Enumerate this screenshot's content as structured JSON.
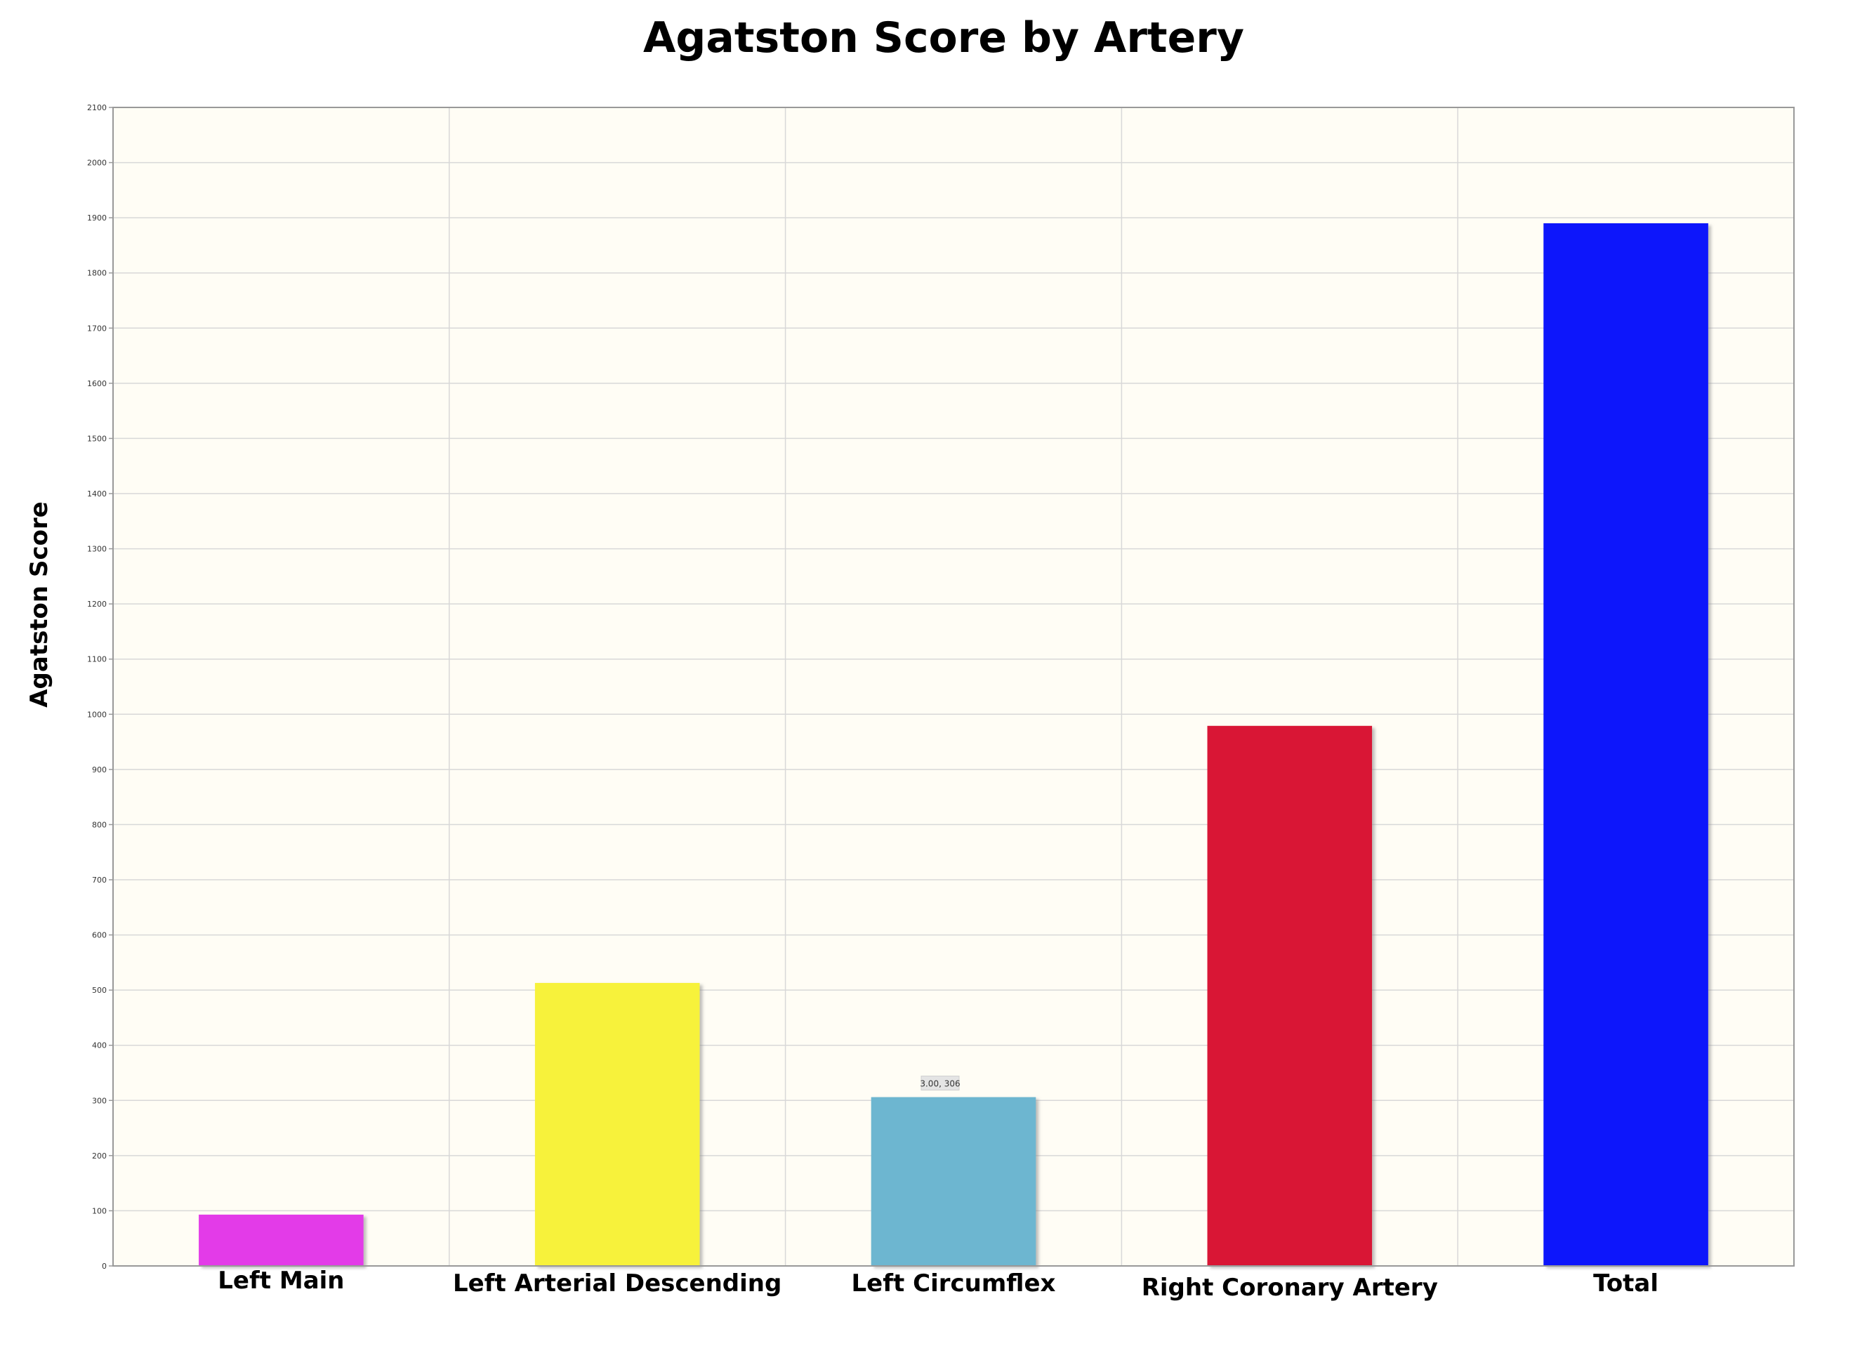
{
  "chart_data": {
    "type": "bar",
    "title": "Agatston Score by Artery",
    "xlabel": "",
    "ylabel": "Agatston Score",
    "categories": [
      "Left Main",
      "Left Arterial Descending",
      "Left Circumflex",
      "Right Coronary Artery",
      "Total"
    ],
    "values": [
      93,
      513,
      306,
      979,
      1890
    ],
    "colors": [
      "#e33ae8",
      "#f7f23a",
      "#6db6d0",
      "#d91734",
      "#1119fb"
    ],
    "ylim": [
      0,
      2100
    ],
    "yticks": [
      0,
      100,
      200,
      300,
      400,
      500,
      600,
      700,
      800,
      900,
      1000,
      1100,
      1200,
      1300,
      1400,
      1500,
      1600,
      1700,
      1800,
      1900,
      2000,
      2100
    ],
    "grid": true,
    "plot_background": "#fffdf5",
    "annotations": [
      {
        "category_index": 2,
        "text": "3.00, 306"
      }
    ]
  }
}
